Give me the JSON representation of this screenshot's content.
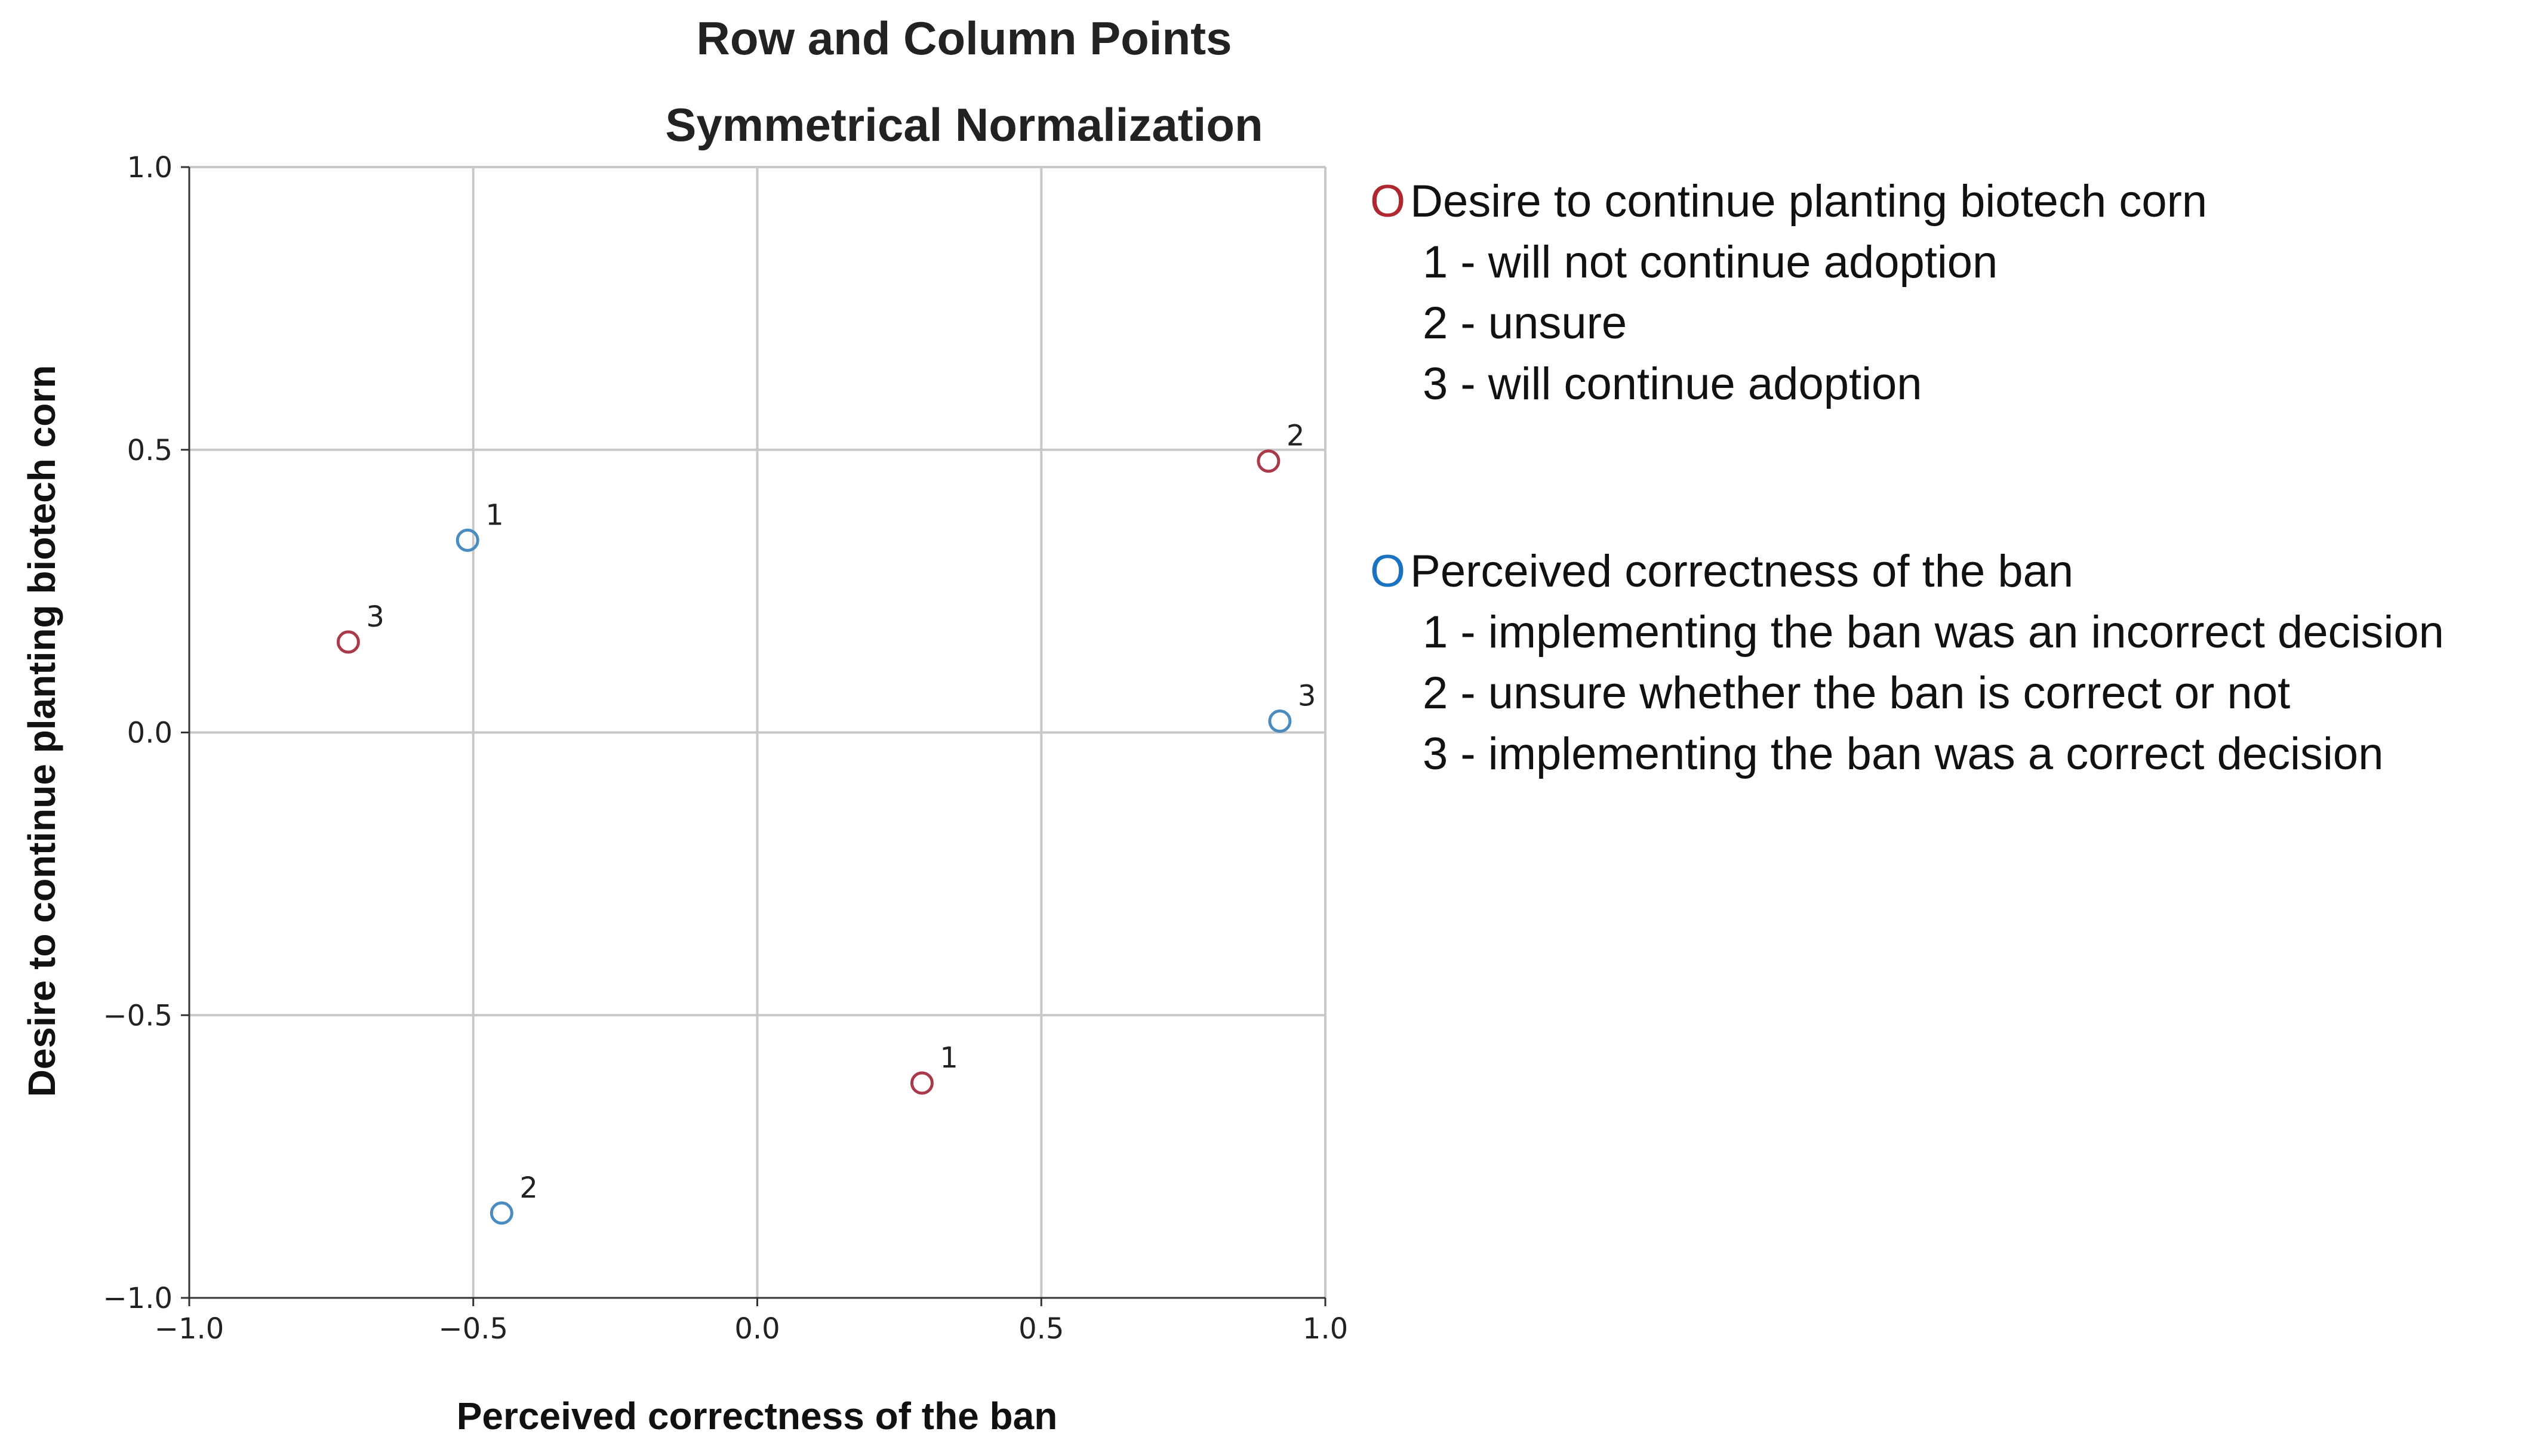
{
  "chart_data": {
    "type": "scatter",
    "title": "Row and Column Points",
    "subtitle": "Symmetrical Normalization",
    "xlabel": "Perceived correctness of the ban",
    "ylabel": "Desire to continue planting biotech corn",
    "xlim": [
      -1.0,
      1.0
    ],
    "ylim": [
      -1.0,
      1.0
    ],
    "xticks": [
      "−1.0",
      "−0.5",
      "0.0",
      "0.5",
      "1.0"
    ],
    "yticks": [
      "1.0",
      "0.5",
      "0.0",
      "−0.5",
      "−1.0"
    ],
    "grid": true,
    "legend_position": "right",
    "series": [
      {
        "name": "Desire to continue planting biotech corn",
        "color": "#a83a4a",
        "points": [
          {
            "label": "1",
            "x": 0.29,
            "y": -0.62
          },
          {
            "label": "2",
            "x": 0.9,
            "y": 0.48
          },
          {
            "label": "3",
            "x": -0.72,
            "y": 0.16
          }
        ]
      },
      {
        "name": "Perceived correctness of the ban",
        "color": "#4a8cc0",
        "points": [
          {
            "label": "1",
            "x": -0.51,
            "y": 0.34
          },
          {
            "label": "2",
            "x": -0.45,
            "y": -0.85
          },
          {
            "label": "3",
            "x": 0.92,
            "y": 0.02
          }
        ]
      }
    ]
  },
  "legend": {
    "marker": "O",
    "groups": [
      {
        "title": "Desire to continue planting biotech corn",
        "color": "#b0282f",
        "items": [
          "1 - will not continue adoption",
          "2 - unsure",
          "3 - will continue adoption"
        ]
      },
      {
        "title": "Perceived correctness of the ban",
        "color": "#1a73c0",
        "items": [
          "1 - implementing the ban was an incorrect decision",
          "2 - unsure whether the ban is correct or not",
          "3 - implementing the ban was a correct decision"
        ]
      }
    ]
  }
}
